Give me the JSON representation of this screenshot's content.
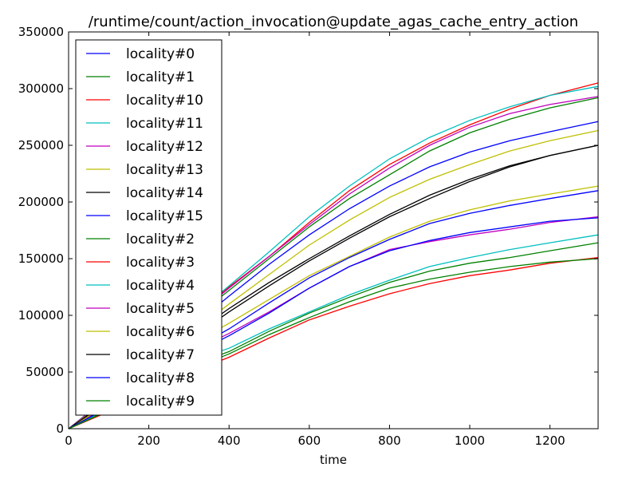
{
  "chart_data": {
    "type": "line",
    "title": "/runtime/count/action_invocation@update_agas_cache_entry_action",
    "xlabel": "time",
    "ylabel": "",
    "xlim": [
      0,
      1320
    ],
    "ylim": [
      0,
      350000
    ],
    "xticks": [
      0,
      200,
      400,
      600,
      800,
      1000,
      1200
    ],
    "yticks": [
      0,
      50000,
      100000,
      150000,
      200000,
      250000,
      300000,
      350000
    ],
    "grid": false,
    "legend_position": "upper-left",
    "series": [
      {
        "name": "locality#0",
        "color": "#0000ff",
        "x": [
          0,
          100,
          200,
          300,
          400,
          500,
          600,
          700,
          800,
          900,
          1000,
          1100,
          1200,
          1320
        ],
        "values": [
          0,
          25000,
          57000,
          88000,
          117000,
          145000,
          171000,
          194000,
          214000,
          231000,
          244000,
          254000,
          262000,
          271000
        ]
      },
      {
        "name": "locality#1",
        "color": "#008000",
        "x": [
          0,
          100,
          200,
          300,
          400,
          500,
          600,
          700,
          800,
          900,
          1000,
          1100,
          1200,
          1320
        ],
        "values": [
          0,
          28000,
          62000,
          94000,
          122000,
          150000,
          178000,
          203000,
          224000,
          245000,
          261000,
          273000,
          283000,
          292000
        ]
      },
      {
        "name": "locality#10",
        "color": "#ff0000",
        "x": [
          0,
          100,
          200,
          300,
          400,
          500,
          600,
          700,
          800,
          900,
          1000,
          1100,
          1200,
          1320
        ],
        "values": [
          0,
          28000,
          63000,
          96000,
          125000,
          152000,
          182000,
          210000,
          233000,
          252000,
          268000,
          282000,
          294000,
          305000
        ]
      },
      {
        "name": "locality#11",
        "color": "#00bfbf",
        "x": [
          0,
          100,
          200,
          300,
          400,
          500,
          600,
          700,
          800,
          900,
          1000,
          1100,
          1200,
          1320
        ],
        "values": [
          0,
          29000,
          64000,
          97000,
          126000,
          156000,
          187000,
          214000,
          238000,
          257000,
          272000,
          284000,
          294000,
          302000
        ]
      },
      {
        "name": "locality#12",
        "color": "#bf00bf",
        "x": [
          0,
          100,
          200,
          300,
          400,
          500,
          600,
          700,
          800,
          900,
          1000,
          1100,
          1200,
          1320
        ],
        "values": [
          0,
          28000,
          62000,
          95000,
          124000,
          152000,
          180000,
          207000,
          230000,
          250000,
          266000,
          278000,
          286000,
          293000
        ]
      },
      {
        "name": "locality#13",
        "color": "#bfbf00",
        "x": [
          0,
          100,
          200,
          300,
          400,
          500,
          600,
          700,
          800,
          900,
          1000,
          1100,
          1200,
          1320
        ],
        "values": [
          0,
          26000,
          55000,
          83000,
          110000,
          136000,
          162000,
          184000,
          204000,
          220000,
          233000,
          245000,
          254000,
          263000
        ]
      },
      {
        "name": "locality#14",
        "color": "#000000",
        "x": [
          0,
          100,
          200,
          300,
          400,
          500,
          600,
          700,
          800,
          900,
          1000,
          1100,
          1200,
          1320
        ],
        "values": [
          0,
          24000,
          52000,
          78000,
          103000,
          126000,
          148000,
          168000,
          187000,
          203000,
          218000,
          231000,
          241000,
          250000
        ]
      },
      {
        "name": "locality#15",
        "color": "#0000ff",
        "x": [
          0,
          100,
          200,
          300,
          400,
          500,
          600,
          700,
          800,
          900,
          1000,
          1100,
          1200,
          1320
        ],
        "values": [
          0,
          20000,
          44000,
          68000,
          88000,
          111000,
          133000,
          151000,
          167000,
          181000,
          190000,
          197000,
          203000,
          210000
        ]
      },
      {
        "name": "locality#2",
        "color": "#008000",
        "x": [
          0,
          100,
          200,
          300,
          400,
          500,
          600,
          700,
          800,
          900,
          1000,
          1100,
          1200,
          1320
        ],
        "values": [
          0,
          17000,
          38000,
          55000,
          68000,
          86000,
          102000,
          116000,
          129000,
          139000,
          146000,
          151000,
          157000,
          164000
        ]
      },
      {
        "name": "locality#3",
        "color": "#ff0000",
        "x": [
          0,
          100,
          200,
          300,
          400,
          500,
          600,
          700,
          800,
          900,
          1000,
          1100,
          1200,
          1320
        ],
        "values": [
          0,
          15000,
          33000,
          49000,
          63000,
          80000,
          96000,
          108000,
          119000,
          128000,
          135000,
          140000,
          146000,
          151000
        ]
      },
      {
        "name": "locality#4",
        "color": "#00bfbf",
        "x": [
          0,
          100,
          200,
          300,
          400,
          500,
          600,
          700,
          800,
          900,
          1000,
          1100,
          1200,
          1320
        ],
        "values": [
          0,
          18000,
          40000,
          59000,
          71000,
          88000,
          103000,
          118000,
          131000,
          143000,
          151000,
          158000,
          164000,
          171000
        ]
      },
      {
        "name": "locality#5",
        "color": "#bf00bf",
        "x": [
          0,
          100,
          200,
          300,
          400,
          500,
          600,
          700,
          800,
          900,
          1000,
          1100,
          1200,
          1320
        ],
        "values": [
          0,
          20000,
          44000,
          67000,
          84000,
          103000,
          124000,
          143000,
          158000,
          165000,
          171000,
          176000,
          182000,
          187000
        ]
      },
      {
        "name": "locality#6",
        "color": "#bfbf00",
        "x": [
          0,
          100,
          200,
          300,
          400,
          500,
          600,
          700,
          800,
          900,
          1000,
          1100,
          1200,
          1320
        ],
        "values": [
          0,
          22000,
          48000,
          73000,
          93000,
          114000,
          135000,
          152000,
          169000,
          183000,
          193000,
          201000,
          207000,
          214000
        ]
      },
      {
        "name": "locality#7",
        "color": "#000000",
        "x": [
          0,
          100,
          200,
          300,
          400,
          500,
          600,
          700,
          800,
          900,
          1000,
          1100,
          1200,
          1320
        ],
        "values": [
          0,
          25000,
          54000,
          81000,
          106000,
          129000,
          150000,
          170000,
          189000,
          206000,
          220000,
          232000,
          241000,
          250000
        ]
      },
      {
        "name": "locality#8",
        "color": "#0000ff",
        "x": [
          0,
          100,
          200,
          300,
          400,
          500,
          600,
          700,
          800,
          900,
          1000,
          1100,
          1200,
          1320
        ],
        "values": [
          0,
          19000,
          42000,
          64000,
          82000,
          102000,
          124000,
          143000,
          157000,
          166000,
          173000,
          178000,
          183000,
          186000
        ]
      },
      {
        "name": "locality#9",
        "color": "#008000",
        "x": [
          0,
          100,
          200,
          300,
          400,
          500,
          600,
          700,
          800,
          900,
          1000,
          1100,
          1200,
          1320
        ],
        "values": [
          0,
          16000,
          35000,
          52000,
          66000,
          83000,
          98000,
          112000,
          124000,
          132000,
          138000,
          143000,
          147000,
          150000
        ]
      }
    ]
  }
}
